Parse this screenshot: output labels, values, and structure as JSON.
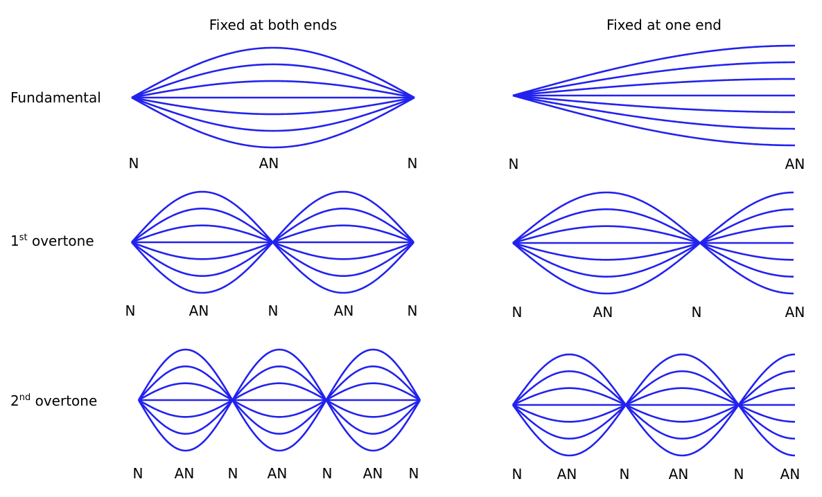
{
  "column_titles": {
    "left": "Fixed at both ends",
    "right": "Fixed at one end"
  },
  "row_labels": [
    {
      "main": "Fundamental",
      "sup": "",
      "rest": ""
    },
    {
      "main": "1",
      "sup": "st",
      "rest": " overtone"
    },
    {
      "main": "2",
      "sup": "nd",
      "rest": " overtone"
    }
  ],
  "node_labels": {
    "fundamental_both": [
      "N",
      "AN",
      "N"
    ],
    "fundamental_one": [
      "N",
      "AN"
    ],
    "overtone1_both": [
      "N",
      "AN",
      "N",
      "AN",
      "N"
    ],
    "overtone1_one": [
      "N",
      "AN",
      "N",
      "AN"
    ],
    "overtone2_both": [
      "N",
      "AN",
      "N",
      "AN",
      "N",
      "AN",
      "N"
    ],
    "overtone2_one": [
      "N",
      "AN",
      "N",
      "AN",
      "N",
      "AN"
    ]
  },
  "wave_color": "#2222ee",
  "amplitude_levels": [
    1,
    0.667,
    0.333,
    0,
    -0.333,
    -0.667,
    -1
  ]
}
